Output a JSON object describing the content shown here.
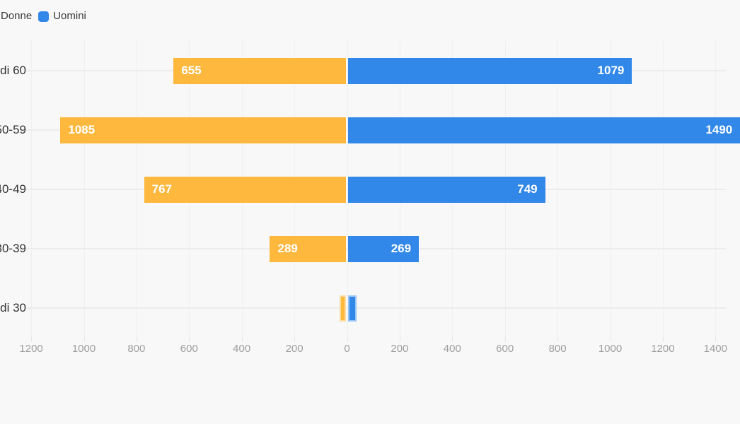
{
  "legend": {
    "items": [
      {
        "label": "Donne",
        "color": "#FDB83D"
      },
      {
        "label": "Uomini",
        "color": "#3288E9"
      }
    ]
  },
  "chart_data": {
    "type": "bar",
    "orientation": "horizontal-diverging",
    "categories": [
      "di 60",
      "50-59",
      "40-49",
      "30-39",
      "di 30"
    ],
    "series": [
      {
        "name": "Donne",
        "side": "left",
        "color": "#FDB83D",
        "values": [
          655,
          1085,
          767,
          289,
          23
        ],
        "labels": [
          "655",
          "1085",
          "767",
          "289",
          ""
        ]
      },
      {
        "name": "Uomini",
        "side": "right",
        "color": "#3288E9",
        "values": [
          1079,
          1490,
          749,
          269,
          32
        ],
        "labels": [
          "1079",
          "1490",
          "749",
          "269",
          ""
        ]
      }
    ],
    "x_axis": {
      "range": [
        -1200,
        1400
      ],
      "tick_values": [
        -1200,
        -1000,
        -800,
        -600,
        -400,
        -200,
        0,
        200,
        400,
        600,
        800,
        1000,
        1200,
        1400
      ],
      "tick_labels": [
        "1200",
        "1000",
        "800",
        "600",
        "400",
        "200",
        "0",
        "200",
        "400",
        "600",
        "800",
        "1000",
        "1200",
        "1400"
      ]
    },
    "grid": true,
    "legend_position": "top-left",
    "value_label_color": "#ffffff",
    "background": "#f8f8f8"
  },
  "colors": {
    "background": "#f8f8f8",
    "grid_vertical": "#f0f0f0",
    "grid_horizontal": "#ececec",
    "axis_text": "#9e9e9e",
    "category_text": "#333333",
    "bar_label": "#ffffff"
  }
}
